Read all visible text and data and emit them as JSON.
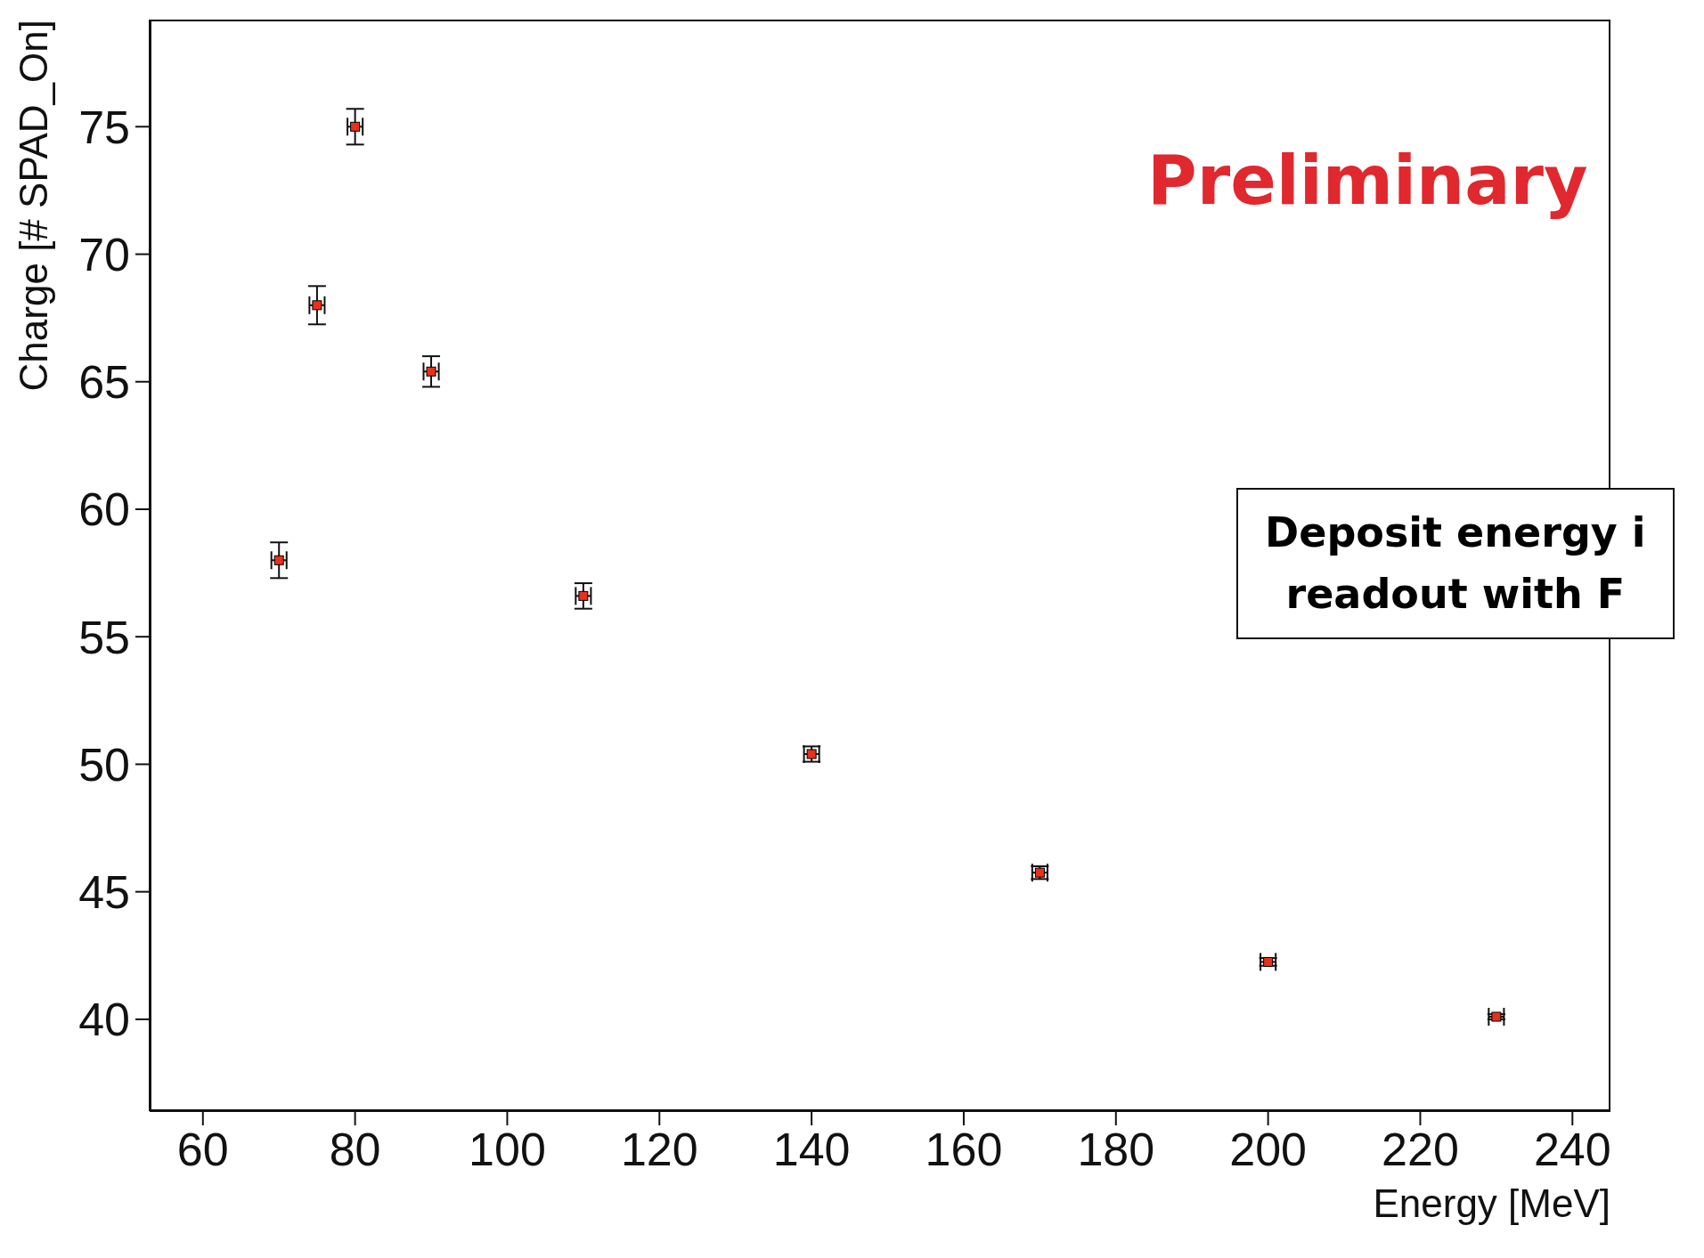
{
  "chart_data": {
    "type": "scatter",
    "xlabel": "Energy [MeV]",
    "ylabel": "Charge [# SPAD_On]",
    "x": [
      70,
      75,
      80,
      90,
      110,
      140,
      170,
      200,
      230
    ],
    "series": [
      {
        "color": "#e8311c",
        "values": [
          58,
          68,
          75,
          65.4,
          56.6,
          50.4,
          45.75,
          42.25,
          40.1
        ],
        "errors": [
          0.7,
          0.75,
          0.7,
          0.6,
          0.5,
          0.3,
          0.25,
          0.15,
          0.1
        ],
        "xerrors": [
          1,
          1,
          1,
          1,
          1,
          1,
          1,
          1,
          1
        ]
      }
    ],
    "xlim": [
      53,
      245
    ],
    "xticks": [
      60,
      80,
      100,
      120,
      140,
      160,
      180,
      200,
      220,
      240
    ],
    "ylim": [
      36.4,
      79.2
    ],
    "yticks": [
      40,
      45,
      50,
      55,
      60,
      65,
      70,
      75
    ],
    "marker": "square",
    "grid": false,
    "annotations": [
      "Preliminary",
      "Deposit energy i\nreadout with F"
    ]
  }
}
